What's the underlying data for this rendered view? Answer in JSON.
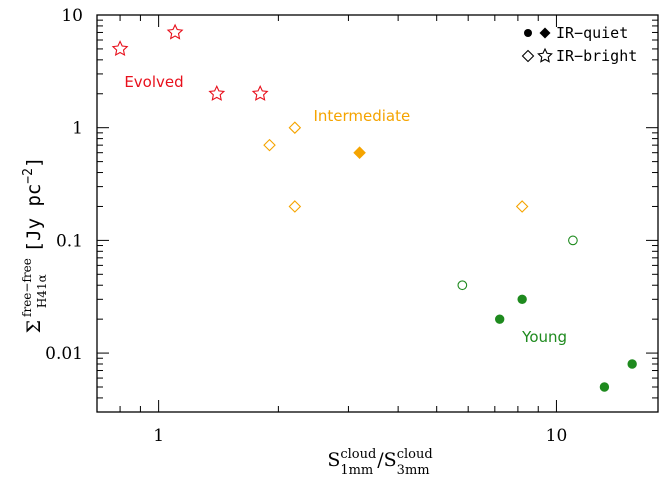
{
  "chart_data": {
    "type": "scatter",
    "xscale": "log",
    "yscale": "log",
    "xlim": [
      0.7,
      18
    ],
    "ylim": [
      0.003,
      10
    ],
    "grid": false,
    "x_ticks": [
      {
        "value": 1,
        "label": "1"
      },
      {
        "value": 10,
        "label": "10"
      }
    ],
    "y_ticks": [
      {
        "value": 10,
        "label": "10"
      },
      {
        "value": 1,
        "label": "1"
      },
      {
        "value": 0.1,
        "label": "0.1"
      },
      {
        "value": 0.01,
        "label": "0.01"
      }
    ],
    "xlabel": {
      "base": "S",
      "sub1": "1mm",
      "sup1": "cloud",
      "slash": "/",
      "sub2": "3mm",
      "sup2": "cloud"
    },
    "ylabel": {
      "sigma": "Σ",
      "sup": "free−free",
      "sub": "H41α",
      "unit": "[Jy pc",
      "unit_exp": "−2",
      "unit_close": "]"
    },
    "legend": {
      "placement": "top-right",
      "entries": [
        {
          "markers": [
            "filled-circle",
            "filled-diamond"
          ],
          "label": "IR−quiet"
        },
        {
          "markers": [
            "open-diamond",
            "open-star"
          ],
          "label": "IR−bright"
        }
      ]
    },
    "annotations": [
      {
        "text": "Evolved",
        "x": 0.82,
        "y": 2.3,
        "color": "#e8101c"
      },
      {
        "text": "Intermediate",
        "x": 2.45,
        "y": 1.15,
        "color": "#f5a400"
      },
      {
        "text": "Young",
        "x": 8.2,
        "y": 0.0125,
        "color": "#1e8a1e"
      }
    ],
    "series": [
      {
        "group": "Evolved",
        "marker": "open-star",
        "color": "#e8101c",
        "points": [
          [
            0.8,
            5.0
          ],
          [
            1.1,
            7.0
          ],
          [
            1.4,
            2.0
          ],
          [
            1.8,
            2.0
          ]
        ]
      },
      {
        "group": "Intermediate",
        "marker": "open-diamond",
        "color": "#f5a400",
        "points": [
          [
            1.9,
            0.7
          ],
          [
            2.2,
            1.0
          ],
          [
            2.2,
            0.2
          ],
          [
            8.2,
            0.2
          ]
        ]
      },
      {
        "group": "Intermediate",
        "marker": "filled-diamond",
        "color": "#f5a400",
        "points": [
          [
            3.2,
            0.6
          ]
        ]
      },
      {
        "group": "Young",
        "marker": "open-circle",
        "color": "#1e8a1e",
        "points": [
          [
            5.8,
            0.04
          ],
          [
            11.0,
            0.1
          ]
        ]
      },
      {
        "group": "Young",
        "marker": "filled-circle",
        "color": "#1e8a1e",
        "points": [
          [
            7.2,
            0.02
          ],
          [
            8.2,
            0.03
          ],
          [
            13.2,
            0.005
          ],
          [
            15.5,
            0.008
          ]
        ]
      }
    ]
  }
}
